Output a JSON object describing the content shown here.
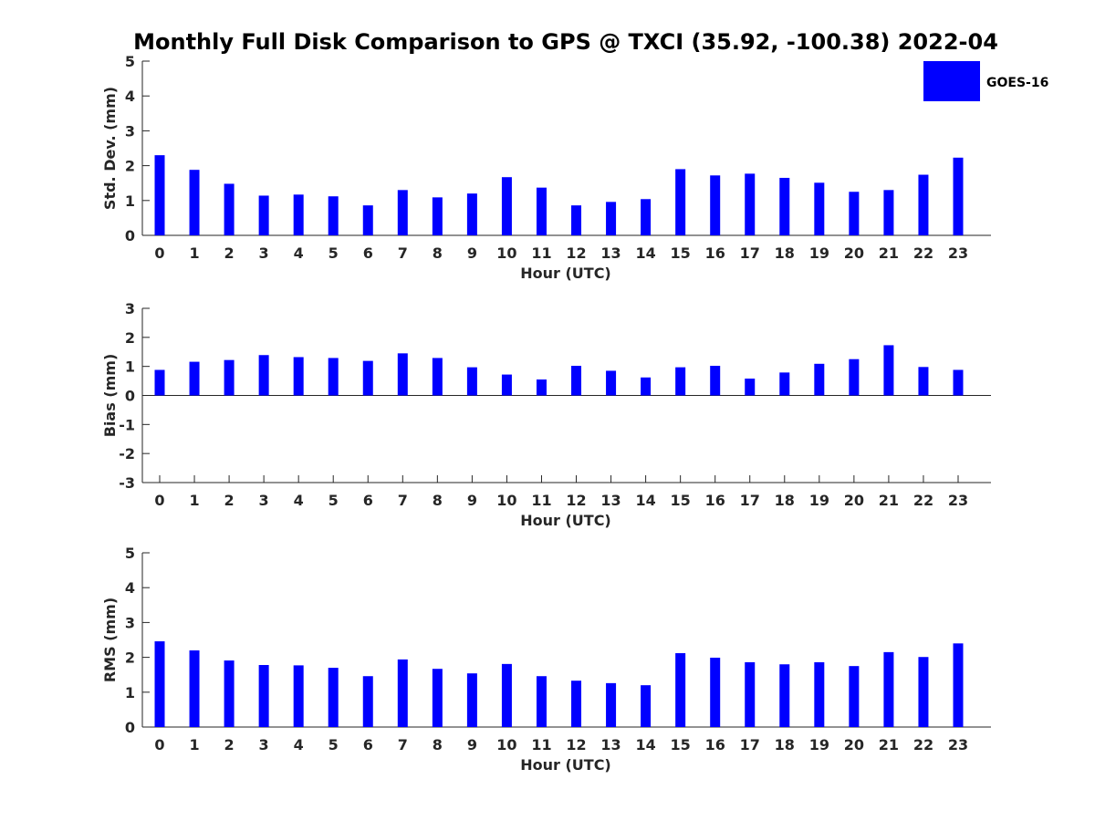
{
  "figure": {
    "title": "Monthly Full Disk Comparison to GPS @ TXCI (35.92, -100.38) 2022-04"
  },
  "legend": {
    "label": "GOES-16",
    "color": "#0000ff",
    "placement": "top-right"
  },
  "chart_data": [
    {
      "type": "bar",
      "xlabel": "Hour (UTC)",
      "ylabel": "Std. Dev. (mm)",
      "ylim": [
        0,
        5
      ],
      "yticks": [
        0,
        1,
        2,
        3,
        4,
        5
      ],
      "categories": [
        "0",
        "1",
        "2",
        "3",
        "4",
        "5",
        "6",
        "7",
        "8",
        "9",
        "10",
        "11",
        "12",
        "13",
        "14",
        "15",
        "16",
        "17",
        "18",
        "19",
        "20",
        "21",
        "22",
        "23"
      ],
      "series": [
        {
          "name": "GOES-16",
          "values": [
            2.3,
            1.88,
            1.48,
            1.14,
            1.17,
            1.12,
            0.86,
            1.3,
            1.09,
            1.2,
            1.67,
            1.37,
            0.86,
            0.96,
            1.04,
            1.9,
            1.72,
            1.77,
            1.65,
            1.51,
            1.25,
            1.3,
            1.74,
            2.23
          ]
        }
      ],
      "grid": false
    },
    {
      "type": "bar",
      "xlabel": "Hour (UTC)",
      "ylabel": "Bias (mm)",
      "ylim": [
        -3,
        3
      ],
      "yticks": [
        -3,
        -2,
        -1,
        0,
        1,
        2,
        3
      ],
      "categories": [
        "0",
        "1",
        "2",
        "3",
        "4",
        "5",
        "6",
        "7",
        "8",
        "9",
        "10",
        "11",
        "12",
        "13",
        "14",
        "15",
        "16",
        "17",
        "18",
        "19",
        "20",
        "21",
        "22",
        "23"
      ],
      "series": [
        {
          "name": "GOES-16",
          "values": [
            0.88,
            1.16,
            1.22,
            1.39,
            1.32,
            1.29,
            1.19,
            1.45,
            1.29,
            0.97,
            0.72,
            0.55,
            1.02,
            0.85,
            0.62,
            0.97,
            1.02,
            0.58,
            0.79,
            1.09,
            1.25,
            1.73,
            0.98,
            0.88
          ]
        }
      ],
      "grid": false
    },
    {
      "type": "bar",
      "xlabel": "Hour (UTC)",
      "ylabel": "RMS (mm)",
      "ylim": [
        0,
        5
      ],
      "yticks": [
        0,
        1,
        2,
        3,
        4,
        5
      ],
      "categories": [
        "0",
        "1",
        "2",
        "3",
        "4",
        "5",
        "6",
        "7",
        "8",
        "9",
        "10",
        "11",
        "12",
        "13",
        "14",
        "15",
        "16",
        "17",
        "18",
        "19",
        "20",
        "21",
        "22",
        "23"
      ],
      "series": [
        {
          "name": "GOES-16",
          "values": [
            2.46,
            2.2,
            1.91,
            1.78,
            1.77,
            1.7,
            1.46,
            1.94,
            1.67,
            1.54,
            1.81,
            1.46,
            1.33,
            1.26,
            1.2,
            2.12,
            1.99,
            1.86,
            1.8,
            1.86,
            1.75,
            2.15,
            2.01,
            2.4
          ]
        }
      ],
      "grid": false
    }
  ]
}
